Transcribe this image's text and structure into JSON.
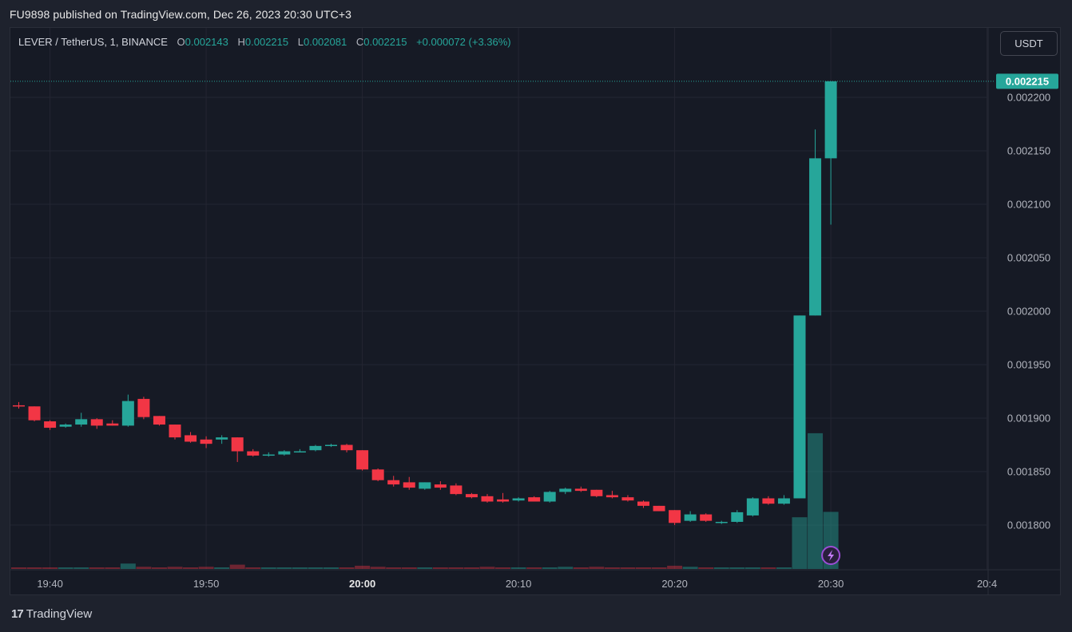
{
  "header": {
    "published": "FU9898 published on TradingView.com, Dec 26, 2023 20:30 UTC+3"
  },
  "legend": {
    "symbol": "LEVER / TetherUS, 1, BINANCE",
    "o_label": "O",
    "o_value": "0.002143",
    "h_label": "H",
    "h_value": "0.002215",
    "l_label": "L",
    "l_value": "0.002081",
    "c_label": "C",
    "c_value": "0.002215",
    "change": "+0.000072 (+3.36%)"
  },
  "currency_button": "USDT",
  "brand": {
    "logo": "17",
    "name": "TradingView"
  },
  "colors": {
    "up": "#26a69a",
    "down": "#f23645",
    "bg": "#161a25",
    "grid": "#232632"
  },
  "chart_data": {
    "type": "candlestick",
    "ylim": [
      0.00176,
      0.00223
    ],
    "y_ticks": [
      "0.002200",
      "0.002150",
      "0.002100",
      "0.002050",
      "0.002000",
      "0.001950",
      "0.001900",
      "0.001850",
      "0.001800"
    ],
    "y_tick_values": [
      0.0022,
      0.00215,
      0.0021,
      0.00205,
      0.002,
      0.00195,
      0.0019,
      0.00185,
      0.0018
    ],
    "x_ticks": [
      {
        "label": "19:40",
        "index": 2,
        "bold": false
      },
      {
        "label": "19:50",
        "index": 12,
        "bold": false
      },
      {
        "label": "20:00",
        "index": 22,
        "bold": true
      },
      {
        "label": "20:10",
        "index": 32,
        "bold": false
      },
      {
        "label": "20:20",
        "index": 42,
        "bold": false
      },
      {
        "label": "20:30",
        "index": 52,
        "bold": false
      },
      {
        "label": "20:4",
        "index": 62,
        "bold": false
      }
    ],
    "last_price": "0.002215",
    "last_price_value": 0.002215,
    "candles": [
      [
        0.001912,
        0.001915,
        0.001909,
        0.001911,
        1
      ],
      [
        0.001911,
        0.001911,
        0.001897,
        0.001898,
        1
      ],
      [
        0.001897,
        0.001898,
        0.001889,
        0.001891,
        1
      ],
      [
        0.001892,
        0.001895,
        0.001891,
        0.001894,
        1
      ],
      [
        0.001894,
        0.001905,
        0.001892,
        0.001899,
        1
      ],
      [
        0.001899,
        0.0019,
        0.00189,
        0.001893,
        1
      ],
      [
        0.001895,
        0.001898,
        0.001893,
        0.001893,
        1
      ],
      [
        0.001893,
        0.001922,
        0.001892,
        0.001916,
        5
      ],
      [
        0.001918,
        0.00192,
        0.001899,
        0.001901,
        2
      ],
      [
        0.001902,
        0.001902,
        0.001893,
        0.001894,
        1
      ],
      [
        0.001894,
        0.001894,
        0.00188,
        0.001882,
        2
      ],
      [
        0.001884,
        0.001887,
        0.001877,
        0.001878,
        1
      ],
      [
        0.00188,
        0.001883,
        0.001872,
        0.001876,
        2
      ],
      [
        0.00188,
        0.001884,
        0.001876,
        0.001882,
        1
      ],
      [
        0.001882,
        0.001882,
        0.001859,
        0.001869,
        4
      ],
      [
        0.001869,
        0.001871,
        0.001864,
        0.001865,
        1
      ],
      [
        0.001866,
        0.001868,
        0.001864,
        0.001866,
        1
      ],
      [
        0.001866,
        0.00187,
        0.001865,
        0.001869,
        1
      ],
      [
        0.001869,
        0.001871,
        0.001868,
        0.001869,
        1
      ],
      [
        0.00187,
        0.001875,
        0.001869,
        0.001874,
        1
      ],
      [
        0.001874,
        0.001876,
        0.001873,
        0.001875,
        1
      ],
      [
        0.001875,
        0.001876,
        0.001868,
        0.00187,
        1
      ],
      [
        0.00187,
        0.00187,
        0.001851,
        0.001852,
        3
      ],
      [
        0.001852,
        0.001853,
        0.001841,
        0.001842,
        2
      ],
      [
        0.001842,
        0.001846,
        0.001836,
        0.001838,
        1
      ],
      [
        0.00184,
        0.001845,
        0.001833,
        0.001835,
        1
      ],
      [
        0.001834,
        0.00184,
        0.001833,
        0.00184,
        1
      ],
      [
        0.001838,
        0.001841,
        0.001833,
        0.001835,
        1
      ],
      [
        0.001837,
        0.001839,
        0.001828,
        0.001829,
        1
      ],
      [
        0.001829,
        0.00183,
        0.001825,
        0.001826,
        1
      ],
      [
        0.001827,
        0.001829,
        0.001821,
        0.001822,
        2
      ],
      [
        0.001824,
        0.00183,
        0.001821,
        0.001822,
        1
      ],
      [
        0.001823,
        0.001826,
        0.001822,
        0.001825,
        1
      ],
      [
        0.001826,
        0.001827,
        0.001822,
        0.001822,
        1
      ],
      [
        0.001822,
        0.001832,
        0.001821,
        0.001831,
        1
      ],
      [
        0.001831,
        0.001835,
        0.001829,
        0.001834,
        2
      ],
      [
        0.001834,
        0.001836,
        0.001831,
        0.001832,
        1
      ],
      [
        0.001833,
        0.001833,
        0.001826,
        0.001827,
        2
      ],
      [
        0.001828,
        0.001832,
        0.001825,
        0.001826,
        1
      ],
      [
        0.001826,
        0.001828,
        0.001822,
        0.001823,
        1
      ],
      [
        0.001822,
        0.001823,
        0.001816,
        0.001818,
        1
      ],
      [
        0.001818,
        0.001818,
        0.001813,
        0.001813,
        1
      ],
      [
        0.001814,
        0.001814,
        0.0018,
        0.001802,
        3
      ],
      [
        0.001804,
        0.001813,
        0.001803,
        0.00181,
        2
      ],
      [
        0.00181,
        0.001811,
        0.001803,
        0.001804,
        1
      ],
      [
        0.001803,
        0.001804,
        0.001801,
        0.001803,
        1
      ],
      [
        0.001803,
        0.001814,
        0.001802,
        0.001812,
        1
      ],
      [
        0.001809,
        0.001826,
        0.001808,
        0.001825,
        1
      ],
      [
        0.001825,
        0.001827,
        0.001819,
        0.00182,
        1
      ],
      [
        0.00182,
        0.001828,
        0.001819,
        0.001825,
        1
      ],
      [
        0.001825,
        0.001996,
        0.001825,
        0.001996,
        48
      ],
      [
        0.001996,
        0.00217,
        0.001996,
        0.002143,
        126
      ],
      [
        0.002143,
        0.002215,
        0.002081,
        0.002215,
        53
      ]
    ]
  }
}
